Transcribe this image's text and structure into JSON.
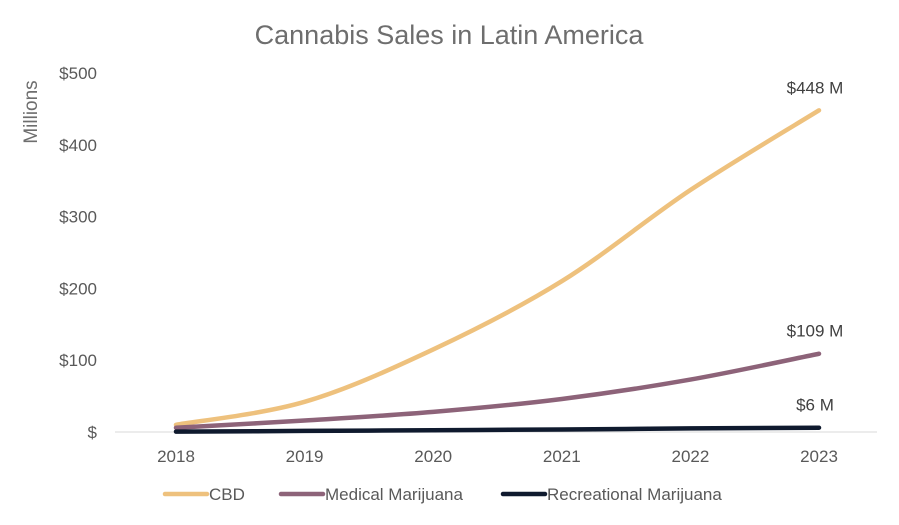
{
  "chart_data": {
    "type": "line",
    "title": "Cannabis Sales in Latin America",
    "ylabel": "Millions",
    "xlabel": "",
    "categories": [
      "2018",
      "2019",
      "2020",
      "2021",
      "2022",
      "2023"
    ],
    "ylim": [
      0,
      500
    ],
    "yticks": [
      0,
      100,
      200,
      300,
      400,
      500
    ],
    "ytick_labels": [
      "$",
      "$100",
      "$200",
      "$300",
      "$400",
      "$500"
    ],
    "grid": false,
    "legend_position": "bottom",
    "series": [
      {
        "name": "CBD",
        "color": "#eec17d",
        "values": [
          10,
          42,
          115,
          210,
          337,
          448
        ],
        "end_label": "$448 M"
      },
      {
        "name": "Medical Marijuana",
        "color": "#8d6379",
        "values": [
          6,
          16,
          28,
          46,
          73,
          109
        ],
        "end_label": "$109 M"
      },
      {
        "name": "Recreational Marijuana",
        "color": "#0f1a2e",
        "values": [
          0.5,
          1.5,
          2.5,
          3.5,
          5,
          6
        ],
        "end_label": "$6 M"
      }
    ]
  }
}
